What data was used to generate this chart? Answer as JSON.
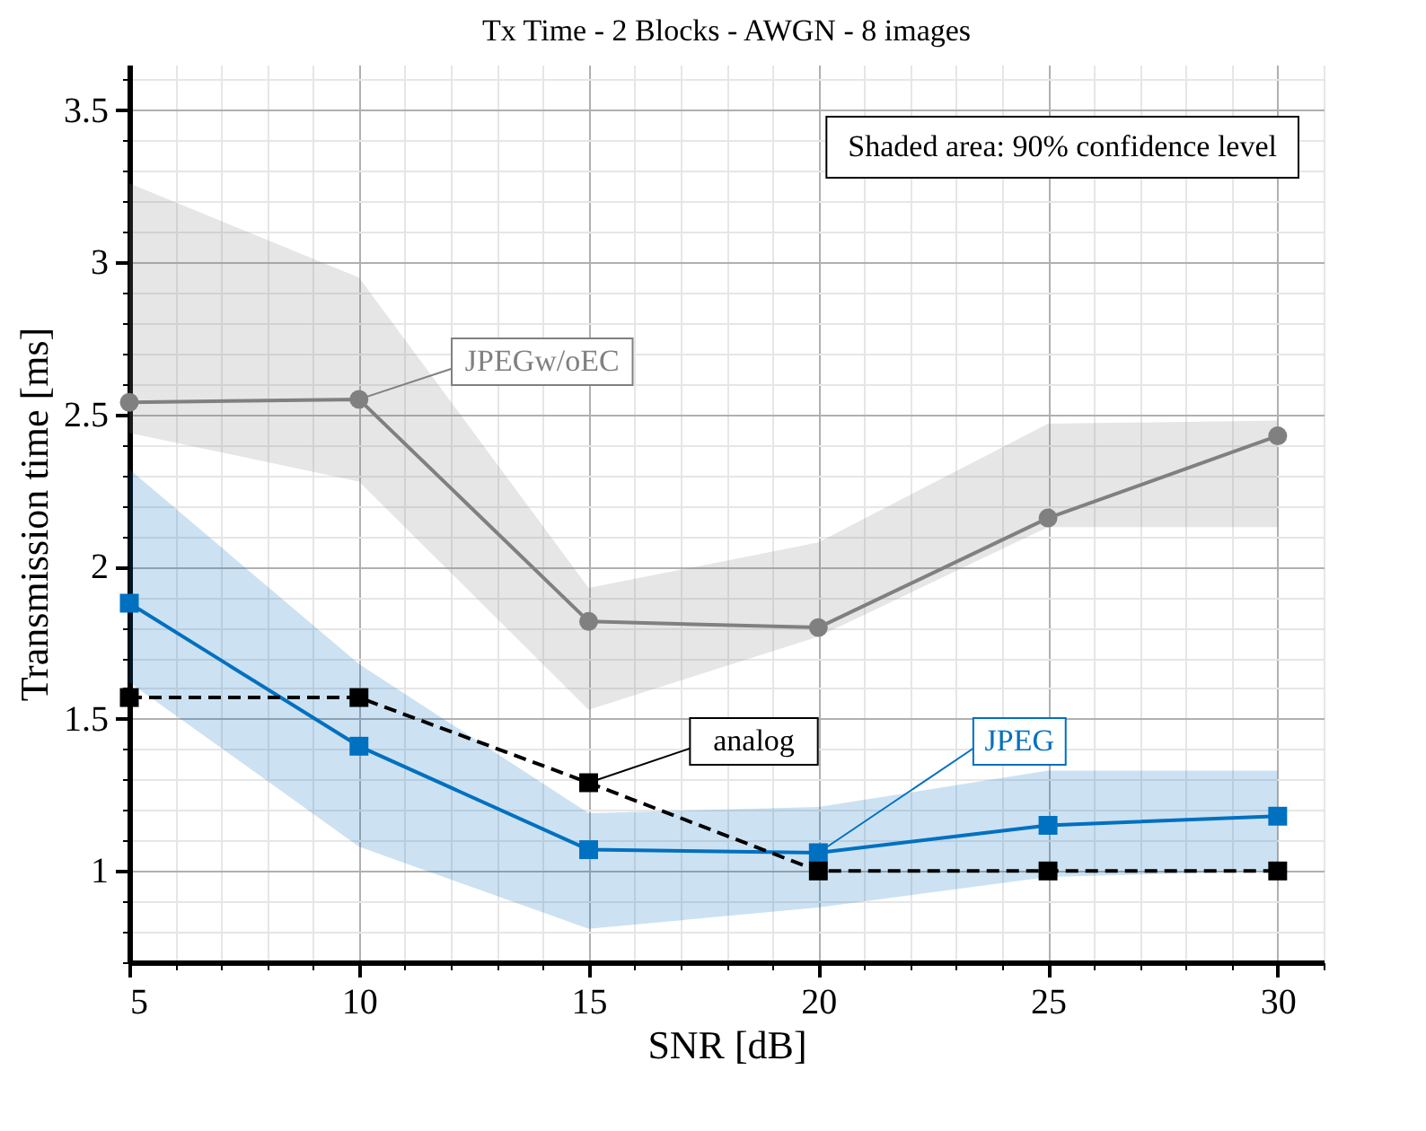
{
  "chart_data": {
    "type": "line",
    "title": "Tx Time - 2 Blocks - AWGN - 8 images",
    "xlabel": "SNR [dB]",
    "ylabel": "Transmission time [ms]",
    "x": [
      5,
      10,
      15,
      20,
      25,
      30
    ],
    "xlim": [
      5,
      31
    ],
    "xticks": [
      5,
      10,
      15,
      20,
      25,
      30
    ],
    "ylim": [
      0.7,
      3.65
    ],
    "yticks": [
      1,
      1.5,
      2,
      2.5,
      3,
      3.5
    ],
    "grid": true,
    "annotations": [
      "Shaded area: 90% confidence level"
    ],
    "series": [
      {
        "name": "JPEGw/oEC",
        "color": "#808080",
        "marker": "circle",
        "line_style": "solid",
        "values": [
          2.54,
          2.55,
          1.82,
          1.8,
          2.16,
          2.43
        ],
        "lower": [
          2.44,
          2.28,
          1.53,
          1.77,
          2.13,
          2.13
        ],
        "upper": [
          3.26,
          2.95,
          1.93,
          2.08,
          2.47,
          2.48
        ]
      },
      {
        "name": "JPEG",
        "color": "#0070c0",
        "marker": "square",
        "line_style": "solid",
        "values": [
          1.88,
          1.41,
          1.07,
          1.06,
          1.15,
          1.18
        ],
        "lower": [
          1.62,
          1.08,
          0.81,
          0.88,
          0.98,
          1.0
        ],
        "upper": [
          2.32,
          1.68,
          1.19,
          1.21,
          1.33,
          1.33
        ]
      },
      {
        "name": "analog",
        "color": "#000000",
        "marker": "square",
        "line_style": "dashed",
        "values": [
          1.57,
          1.57,
          1.29,
          1.0,
          1.0,
          1.0
        ]
      }
    ]
  }
}
